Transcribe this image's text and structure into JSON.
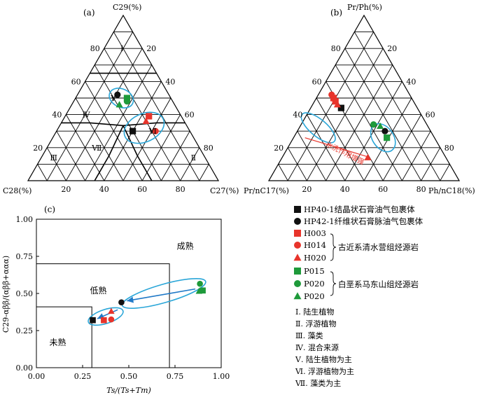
{
  "colors": {
    "red": "#e8342b",
    "green": "#1e9a3a",
    "black": "#111111",
    "ellipse": "#2aa6d8",
    "arrow": "#2079c7",
    "trend": "#e8342b"
  },
  "chart_data": [
    {
      "panel": "(a)",
      "type": "scatter",
      "subtype": "ternary",
      "axes": {
        "top": "C29(%)",
        "left": "C28(%)",
        "right": "C27(%)"
      },
      "tick_labels": {
        "left_edge": [
          "20",
          "40",
          "60",
          "80"
        ],
        "right_edge": [
          "80",
          "60",
          "40",
          "20"
        ],
        "bottom_edge": [
          "20",
          "40",
          "60",
          "80"
        ]
      },
      "regions": [
        "Ⅰ",
        "Ⅱ",
        "Ⅲ",
        "Ⅳ",
        "Ⅴ",
        "Ⅵ",
        "Ⅶ"
      ],
      "series": [
        {
          "name": "HP40-1结晶状石膏油气包裹体",
          "marker": "square",
          "color": "black",
          "points": [
            {
              "C29": 30,
              "C27": 40
            }
          ]
        },
        {
          "name": "HP42-1纤维状石膏脉油气包裹体",
          "marker": "circle",
          "color": "black",
          "points": [
            {
              "C29": 52,
              "C27": 21
            }
          ]
        },
        {
          "name": "H003",
          "marker": "square",
          "color": "red",
          "points": [
            {
              "C29": 39,
              "C27": 44
            }
          ]
        },
        {
          "name": "H014",
          "marker": "circle",
          "color": "red",
          "points": [
            {
              "C29": 30,
              "C27": 52
            }
          ]
        },
        {
          "name": "H020",
          "marker": "triangle",
          "color": "red",
          "points": [
            {
              "C29": 36,
              "C27": 44
            }
          ]
        },
        {
          "name": "P015",
          "marker": "square",
          "color": "green",
          "points": [
            {
              "C29": 50,
              "C27": 27
            }
          ]
        },
        {
          "name": "P020",
          "marker": "circle",
          "color": "green",
          "points": [
            {
              "C29": 48,
              "C27": 28
            }
          ]
        },
        {
          "name": "P020",
          "marker": "triangle",
          "color": "green",
          "points": [
            {
              "C29": 46,
              "C27": 25
            }
          ]
        }
      ]
    },
    {
      "panel": "(b)",
      "type": "scatter",
      "subtype": "ternary",
      "axes": {
        "top": "Pr/Ph(%)",
        "left": "Pr/nC17(%)",
        "right": "Ph/nC18(%)"
      },
      "tick_labels": {
        "left_edge": [
          "20",
          "40",
          "60",
          "80"
        ],
        "right_edge": [
          "80",
          "60",
          "40",
          "20"
        ],
        "bottom_edge": [
          "20",
          "40",
          "60",
          "80"
        ]
      },
      "annotation": "水洗作用增强",
      "series": [
        {
          "name": "HP40-1结晶状石膏油气包裹体",
          "marker": "square",
          "color": "black",
          "points": [
            {
              "Pr_Ph": 44,
              "Ph_nC18": 16
            }
          ]
        },
        {
          "name": "HP42-1纤维状石膏脉油气包裹体",
          "marker": "circle",
          "color": "black",
          "points": [
            {
              "Pr_Ph": 30,
              "Ph_nC18": 46
            }
          ]
        },
        {
          "name": "H003",
          "marker": "square",
          "color": "red",
          "points": [
            {
              "Pr_Ph": 50,
              "Ph_nC18": 9
            },
            {
              "Pr_Ph": 48,
              "Ph_nC18": 11
            }
          ]
        },
        {
          "name": "H014",
          "marker": "circle",
          "color": "red",
          "points": [
            {
              "Pr_Ph": 52,
              "Ph_nC18": 7
            }
          ]
        },
        {
          "name": "H020",
          "marker": "triangle",
          "color": "red",
          "points": [
            {
              "Pr_Ph": 46,
              "Ph_nC18": 13
            },
            {
              "Pr_Ph": 14,
              "Ph_nC18": 45
            }
          ]
        },
        {
          "name": "P015",
          "marker": "square",
          "color": "green",
          "points": [
            {
              "Pr_Ph": 26,
              "Ph_nC18": 49
            }
          ]
        },
        {
          "name": "P020",
          "marker": "circle",
          "color": "green",
          "points": [
            {
              "Pr_Ph": 34,
              "Ph_nC18": 38
            }
          ]
        },
        {
          "name": "P020",
          "marker": "triangle",
          "color": "green",
          "points": [
            {
              "Pr_Ph": 33,
              "Ph_nC18": 42
            }
          ]
        }
      ]
    },
    {
      "panel": "(c)",
      "type": "scatter",
      "xlabel": "Ts/(Ts+Tm)",
      "ylabel": "C29-αββ/(αββ+ααα)",
      "xlim": [
        0,
        1
      ],
      "ylim": [
        0,
        1
      ],
      "xticks": [
        "0.00",
        "0.25",
        "0.50",
        "0.75",
        "1.00"
      ],
      "yticks": [
        "0.00",
        "0.25",
        "0.50",
        "0.75",
        "1.00"
      ],
      "zones": [
        {
          "label": "未熟",
          "x": [
            0,
            0.3
          ],
          "y": [
            0,
            0.41
          ]
        },
        {
          "label": "低熟",
          "x": [
            0,
            0.72
          ],
          "y": [
            0,
            0.7
          ]
        },
        {
          "label": "成熟"
        }
      ],
      "series": [
        {
          "name": "HP40-1结晶状石膏油气包裹体",
          "marker": "square",
          "color": "black",
          "points": [
            [
              0.305,
              0.32
            ]
          ]
        },
        {
          "name": "HP42-1纤维状石膏脉油气包裹体",
          "marker": "circle",
          "color": "black",
          "points": [
            [
              0.46,
              0.44
            ]
          ]
        },
        {
          "name": "H003",
          "marker": "square",
          "color": "red",
          "points": [
            [
              0.365,
              0.32
            ]
          ]
        },
        {
          "name": "H014",
          "marker": "circle",
          "color": "red",
          "points": [
            [
              0.405,
              0.325
            ]
          ]
        },
        {
          "name": "H020",
          "marker": "triangle",
          "color": "red",
          "points": [
            [
              0.405,
              0.38
            ]
          ]
        },
        {
          "name": "P015",
          "marker": "square",
          "color": "green",
          "points": [
            [
              0.9,
              0.52
            ]
          ]
        },
        {
          "name": "P020",
          "marker": "circle",
          "color": "green",
          "points": [
            [
              0.885,
              0.565
            ]
          ]
        },
        {
          "name": "P020",
          "marker": "triangle",
          "color": "green",
          "points": [
            [
              0.88,
              0.515
            ]
          ]
        }
      ]
    }
  ],
  "legend": {
    "items": [
      {
        "marker": "square",
        "color": "black",
        "label": "HP40-1结晶状石膏油气包裹体"
      },
      {
        "marker": "circle",
        "color": "black",
        "label": "HP42-1纤维状石膏脉油气包裹体"
      },
      {
        "marker": "square",
        "color": "red",
        "label": "H003"
      },
      {
        "marker": "circle",
        "color": "red",
        "label": "H014"
      },
      {
        "marker": "triangle",
        "color": "red",
        "label": "H020"
      },
      {
        "marker": "square",
        "color": "green",
        "label": "P015"
      },
      {
        "marker": "circle",
        "color": "green",
        "label": "P020"
      },
      {
        "marker": "triangle",
        "color": "green",
        "label": "P020"
      }
    ],
    "groups": [
      "古近系清水营组烃源岩",
      "白垩系马东山组烃源岩"
    ],
    "notes": [
      "Ⅰ. 陆生植物",
      "Ⅱ. 浮游植物",
      "Ⅲ. 藻类",
      "Ⅳ. 混合来源",
      "Ⅴ. 陆生植物为主",
      "Ⅵ. 浮游植物为主",
      "Ⅶ. 藻类为主"
    ]
  }
}
